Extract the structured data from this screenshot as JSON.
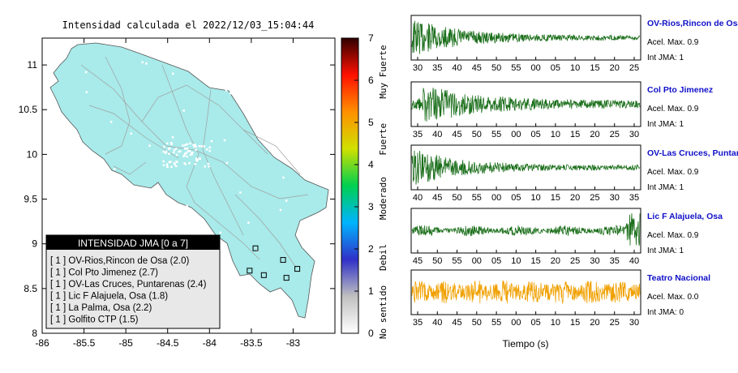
{
  "chart_data": [
    {
      "type": "map",
      "title": "Intensidad calculada el 2022/12/03_15:04:44",
      "xlim": [
        -86,
        -82.5
      ],
      "ylim": [
        8,
        11.3
      ],
      "x_ticks": [
        "-86",
        "-85.5",
        "-85",
        "-84.5",
        "-84",
        "-83.5",
        "-83"
      ],
      "x_tick_values": [
        -86,
        -85.5,
        -85,
        -84.5,
        -84,
        -83.5,
        -83
      ],
      "y_ticks": [
        "8",
        "8.5",
        "9",
        "9.5",
        "10",
        "10.5",
        "11"
      ],
      "y_tick_values": [
        8,
        8.5,
        9,
        9.5,
        10,
        10.5,
        11
      ],
      "station_markers": [
        {
          "lon": -83.45,
          "lat": 8.95
        },
        {
          "lon": -83.12,
          "lat": 8.82
        },
        {
          "lon": -82.95,
          "lat": 8.72
        },
        {
          "lon": -83.08,
          "lat": 8.62
        },
        {
          "lon": -83.35,
          "lat": 8.65
        },
        {
          "lon": -83.52,
          "lat": 8.7
        }
      ],
      "legend": {
        "title": "INTENSIDAD JMA [0 a 7]",
        "entries": [
          "[ 1 ]  OV-Rios,Rincon de Osa (2.0)",
          "[ 1 ]  Col Pto Jimenez (2.7)",
          "[ 1 ]  OV-Las Cruces, Puntarenas (2.4)",
          "[ 1 ]  Lic F Alajuela, Osa (1.8)",
          "[ 1 ]  La Palma, Osa (2.2)",
          "[ 1 ]  Golfito CTP (1.5)"
        ]
      }
    },
    {
      "type": "colorbar",
      "ticks": [
        "0",
        "1",
        "2",
        "3",
        "4",
        "5",
        "6",
        "7"
      ],
      "tick_values": [
        0,
        1,
        2,
        3,
        4,
        5,
        6,
        7
      ],
      "range": [
        0,
        7
      ],
      "labels": [
        "No sentido",
        "Debil",
        "Moderado",
        "Fuerte",
        "Muy Fuerte"
      ],
      "colors": [
        "#ffffff",
        "#c0c0c0",
        "#3030c8",
        "#00b4ff",
        "#00d050",
        "#d0e000",
        "#ff9000",
        "#ff1000",
        "#300000"
      ]
    },
    {
      "type": "line",
      "xlabel": "Tiempo (s)",
      "series": [
        {
          "name": "OV-Rios,Rincon de Osa",
          "acel_label": "Acel. Max. 0.9",
          "jma_label": "Int JMA: 1",
          "color": "#1a6e1a",
          "ticks": [
            "30",
            "35",
            "40",
            "45",
            "50",
            "55",
            "00",
            "05",
            "10",
            "15",
            "20",
            "25"
          ],
          "envelope": "decay"
        },
        {
          "name": "Col Pto Jimenez",
          "acel_label": "Acel. Max. 0.9",
          "jma_label": "Int JMA: 1",
          "color": "#1a6e1a",
          "ticks": [
            "35",
            "40",
            "45",
            "50",
            "55",
            "00",
            "05",
            "10",
            "15",
            "20",
            "25",
            "30"
          ],
          "envelope": "decay-late"
        },
        {
          "name": "OV-Las Cruces, Puntarenas",
          "acel_label": "Acel. Max. 0.9",
          "jma_label": "Int JMA: 1",
          "color": "#1a6e1a",
          "ticks": [
            "40",
            "45",
            "50",
            "55",
            "00",
            "05",
            "10",
            "15",
            "20",
            "25",
            "30",
            "35"
          ],
          "envelope": "decay"
        },
        {
          "name": "Lic F Alajuela, Osa",
          "acel_label": "Acel. Max. 0.9",
          "jma_label": "Int JMA: 1",
          "color": "#1a6e1a",
          "ticks": [
            "45",
            "50",
            "55",
            "00",
            "05",
            "10",
            "15",
            "20",
            "25",
            "30",
            "35",
            "40"
          ],
          "envelope": "growth"
        },
        {
          "name": "Teatro Nacional",
          "acel_label": "Acel. Max. 0.0",
          "jma_label": "Int JMA: 0",
          "color": "#f0a000",
          "ticks": [
            "35",
            "40",
            "45",
            "50",
            "55",
            "00",
            "05",
            "10",
            "15",
            "20",
            "25",
            "30"
          ],
          "envelope": "flat"
        }
      ]
    }
  ]
}
